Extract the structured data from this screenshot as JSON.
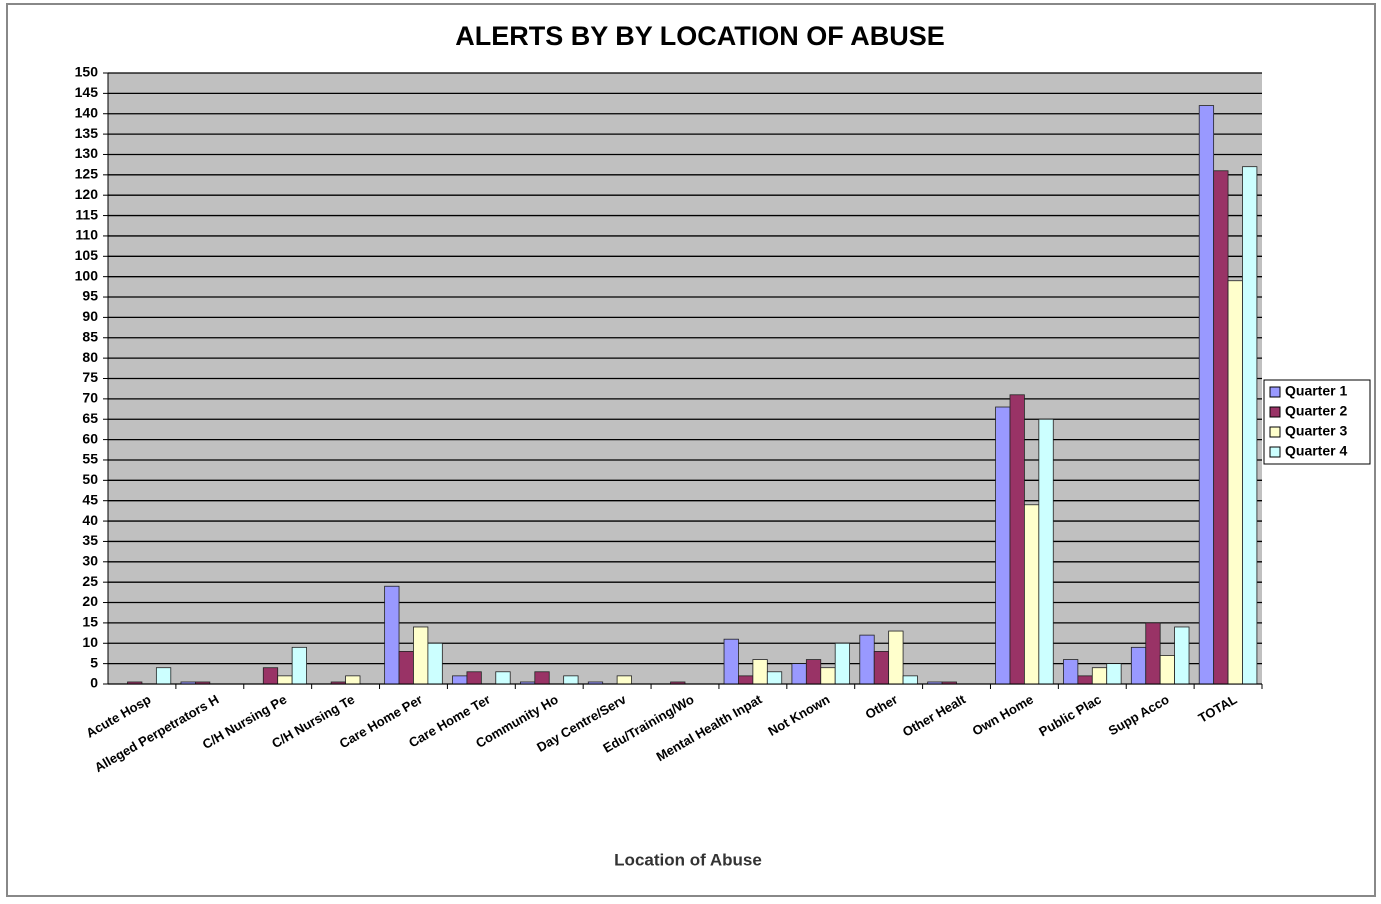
{
  "chart_data": {
    "type": "bar",
    "title": "ALERTS BY BY LOCATION OF ABUSE",
    "x_label": "Location of Abuse",
    "categories": [
      "Acute Hosp",
      "Alleged Perpetrators H",
      "C/H Nursing Pe",
      "C/H Nursing Te",
      "Care Home Per",
      "Care Home Ter",
      "Community Ho",
      "Day Centre/Serv",
      "Edu/Training/Wo",
      "Mental Health Inpat",
      "Not Known",
      "Other",
      "Other Healt",
      "Own Home",
      "Public Plac",
      "Supp Acco",
      "TOTAL"
    ],
    "series": [
      {
        "name": "Quarter 1",
        "color": "#9999ff",
        "values": [
          0,
          0.5,
          0,
          0,
          24,
          2,
          0.5,
          0.5,
          0,
          11,
          5,
          12,
          0.5,
          68,
          6,
          9,
          142
        ]
      },
      {
        "name": "Quarter 2",
        "color": "#993366",
        "values": [
          0.5,
          0.5,
          4,
          0.5,
          8,
          3,
          3,
          0,
          0.5,
          2,
          6,
          8,
          0.5,
          71,
          2,
          15,
          126
        ]
      },
      {
        "name": "Quarter 3",
        "color": "#ffffcc",
        "values": [
          0,
          0,
          2,
          2,
          14,
          0,
          0,
          2,
          0,
          6,
          4,
          13,
          0,
          44,
          4,
          7,
          99
        ]
      },
      {
        "name": "Quarter 4",
        "color": "#ccffff",
        "values": [
          4,
          0,
          9,
          0,
          10,
          3,
          2,
          0,
          0,
          3,
          10,
          2,
          0,
          65,
          5,
          14,
          127
        ]
      }
    ],
    "ylim": [
      0,
      150
    ],
    "yticks": [
      0,
      5,
      10,
      15,
      20,
      25,
      30,
      35,
      40,
      45,
      50,
      55,
      60,
      65,
      70,
      75,
      80,
      85,
      90,
      95,
      100,
      105,
      110,
      115,
      120,
      125,
      130,
      135,
      140,
      145,
      150
    ],
    "grid": true,
    "plot_background": "#c0c0c0",
    "legend": "right"
  }
}
